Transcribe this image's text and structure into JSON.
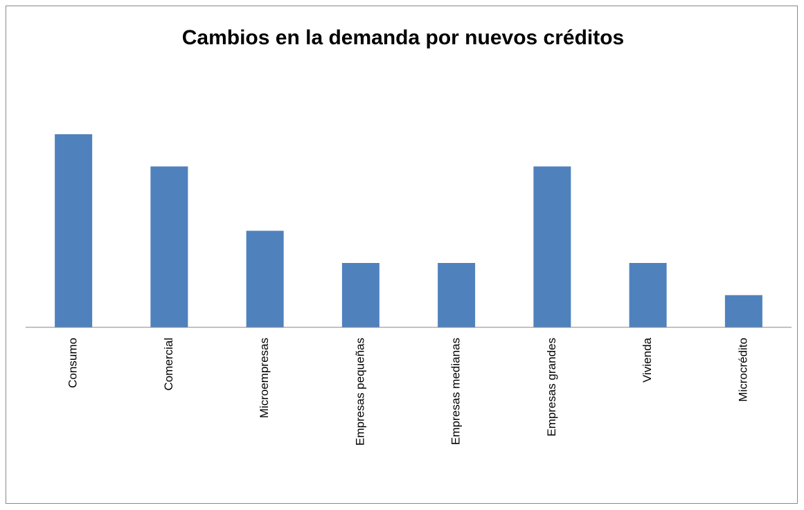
{
  "chart_data": {
    "type": "bar",
    "title": "Cambios en la demanda por nuevos créditos",
    "categories": [
      "Consumo",
      "Comercial",
      "Microempresas",
      "Empresas pequeñas",
      "Empresas medianas",
      "Empresas grandes",
      "Vivienda",
      "Microcrédito"
    ],
    "values": [
      6,
      5,
      3,
      2,
      2,
      5,
      2,
      1
    ],
    "color": "#4f81bd",
    "ylim": [
      0,
      8
    ]
  }
}
